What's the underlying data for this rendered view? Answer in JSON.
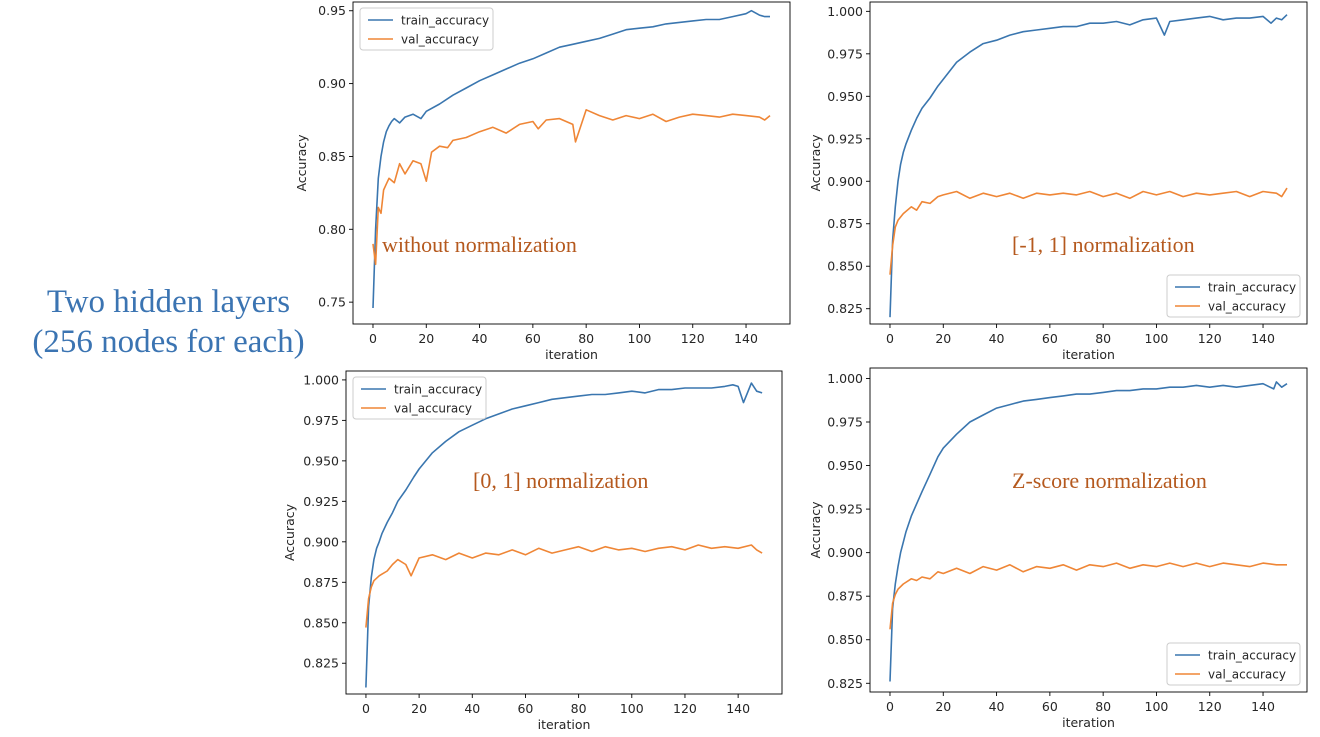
{
  "side_title": {
    "line1": "Two hidden layers",
    "line2": "(256 nodes for each)"
  },
  "colors": {
    "train": "#3a76af",
    "val": "#ef8636",
    "annotation": "#b5591e",
    "side_title": "#3b74b2"
  },
  "chart_data": [
    {
      "type": "line",
      "annotation": "without normalization",
      "xlabel": "iteration",
      "ylabel": "Accuracy",
      "xlim": [
        -7.5,
        156.5
      ],
      "ylim": [
        0.735,
        0.956
      ],
      "xticks": [
        0,
        20,
        40,
        60,
        80,
        100,
        120,
        140
      ],
      "yticks": [
        0.75,
        0.8,
        0.85,
        0.9,
        0.95
      ],
      "ytick_labels": [
        "0.75",
        "0.80",
        "0.85",
        "0.90",
        "0.95"
      ],
      "legend_position": "upper left",
      "legend_labels": [
        "train_accuracy",
        "val_accuracy"
      ],
      "series": [
        {
          "key": "train",
          "name": "train_accuracy",
          "x": [
            0,
            1,
            2,
            3,
            4,
            5,
            6,
            7,
            8,
            10,
            12,
            15,
            18,
            20,
            25,
            30,
            35,
            40,
            45,
            50,
            55,
            60,
            65,
            70,
            75,
            80,
            85,
            90,
            95,
            100,
            105,
            110,
            115,
            120,
            125,
            130,
            135,
            140,
            142,
            145,
            147,
            149
          ],
          "y": [
            0.746,
            0.8,
            0.835,
            0.85,
            0.86,
            0.867,
            0.871,
            0.874,
            0.876,
            0.873,
            0.877,
            0.879,
            0.876,
            0.881,
            0.886,
            0.892,
            0.897,
            0.902,
            0.906,
            0.91,
            0.914,
            0.917,
            0.921,
            0.925,
            0.927,
            0.929,
            0.931,
            0.934,
            0.937,
            0.938,
            0.939,
            0.941,
            0.942,
            0.943,
            0.944,
            0.944,
            0.946,
            0.948,
            0.95,
            0.947,
            0.946,
            0.946
          ]
        },
        {
          "key": "val",
          "name": "val_accuracy",
          "x": [
            0,
            1,
            2,
            3,
            4,
            5,
            6,
            8,
            10,
            12,
            15,
            18,
            20,
            22,
            25,
            28,
            30,
            35,
            40,
            45,
            50,
            55,
            60,
            62,
            65,
            70,
            75,
            76,
            80,
            85,
            90,
            95,
            100,
            105,
            110,
            115,
            120,
            125,
            130,
            135,
            140,
            145,
            147,
            149
          ],
          "y": [
            0.79,
            0.776,
            0.815,
            0.811,
            0.827,
            0.831,
            0.835,
            0.832,
            0.845,
            0.838,
            0.847,
            0.845,
            0.833,
            0.853,
            0.857,
            0.856,
            0.861,
            0.863,
            0.867,
            0.87,
            0.866,
            0.872,
            0.874,
            0.869,
            0.875,
            0.876,
            0.872,
            0.86,
            0.882,
            0.878,
            0.875,
            0.878,
            0.876,
            0.879,
            0.874,
            0.877,
            0.879,
            0.878,
            0.877,
            0.879,
            0.878,
            0.877,
            0.875,
            0.878
          ]
        }
      ]
    },
    {
      "type": "line",
      "annotation": "[-1, 1] normalization",
      "xlabel": "iteration",
      "ylabel": "Accuracy",
      "xlim": [
        -7.5,
        156.5
      ],
      "ylim": [
        0.816,
        1.0055
      ],
      "xticks": [
        0,
        20,
        40,
        60,
        80,
        100,
        120,
        140
      ],
      "yticks": [
        0.825,
        0.85,
        0.875,
        0.9,
        0.925,
        0.95,
        0.975,
        1.0
      ],
      "ytick_labels": [
        "0.825",
        "0.850",
        "0.875",
        "0.900",
        "0.925",
        "0.950",
        "0.975",
        "1.000"
      ],
      "legend_position": "lower right",
      "legend_labels": [
        "train_accuracy",
        "val_accuracy"
      ],
      "series": [
        {
          "key": "train",
          "name": "train_accuracy",
          "x": [
            0,
            1,
            2,
            3,
            4,
            5,
            6,
            8,
            10,
            12,
            15,
            18,
            20,
            25,
            30,
            35,
            40,
            45,
            50,
            55,
            60,
            65,
            70,
            75,
            80,
            85,
            90,
            95,
            100,
            103,
            105,
            110,
            115,
            120,
            125,
            130,
            135,
            140,
            143,
            145,
            147,
            149
          ],
          "y": [
            0.82,
            0.865,
            0.885,
            0.9,
            0.91,
            0.917,
            0.922,
            0.93,
            0.937,
            0.943,
            0.949,
            0.956,
            0.96,
            0.97,
            0.976,
            0.981,
            0.983,
            0.986,
            0.988,
            0.989,
            0.99,
            0.991,
            0.991,
            0.993,
            0.993,
            0.994,
            0.992,
            0.995,
            0.996,
            0.986,
            0.994,
            0.995,
            0.996,
            0.997,
            0.995,
            0.996,
            0.996,
            0.997,
            0.993,
            0.996,
            0.995,
            0.998
          ]
        },
        {
          "key": "val",
          "name": "val_accuracy",
          "x": [
            0,
            1,
            2,
            3,
            5,
            8,
            10,
            12,
            15,
            18,
            20,
            25,
            30,
            35,
            40,
            45,
            50,
            55,
            60,
            65,
            70,
            75,
            80,
            85,
            90,
            95,
            100,
            105,
            110,
            115,
            120,
            125,
            130,
            135,
            140,
            145,
            147,
            149
          ],
          "y": [
            0.845,
            0.862,
            0.873,
            0.877,
            0.881,
            0.885,
            0.883,
            0.888,
            0.887,
            0.891,
            0.892,
            0.894,
            0.89,
            0.893,
            0.891,
            0.893,
            0.89,
            0.893,
            0.892,
            0.893,
            0.892,
            0.894,
            0.891,
            0.893,
            0.89,
            0.894,
            0.892,
            0.894,
            0.891,
            0.893,
            0.892,
            0.893,
            0.894,
            0.891,
            0.894,
            0.893,
            0.891,
            0.896
          ]
        }
      ]
    },
    {
      "type": "line",
      "annotation": "[0, 1] normalization",
      "xlabel": "iteration",
      "ylabel": "Accuracy",
      "xlim": [
        -7.5,
        156.5
      ],
      "ylim": [
        0.806,
        1.0055
      ],
      "xticks": [
        0,
        20,
        40,
        60,
        80,
        100,
        120,
        140
      ],
      "yticks": [
        0.825,
        0.85,
        0.875,
        0.9,
        0.925,
        0.95,
        0.975,
        1.0
      ],
      "ytick_labels": [
        "0.825",
        "0.850",
        "0.875",
        "0.900",
        "0.925",
        "0.950",
        "0.975",
        "1.000"
      ],
      "legend_position": "upper left",
      "legend_labels": [
        "train_accuracy",
        "val_accuracy"
      ],
      "series": [
        {
          "key": "train",
          "name": "train_accuracy",
          "x": [
            0,
            1,
            2,
            3,
            4,
            5,
            6,
            8,
            10,
            12,
            15,
            18,
            20,
            25,
            30,
            35,
            40,
            45,
            50,
            55,
            60,
            65,
            70,
            75,
            80,
            85,
            90,
            95,
            100,
            105,
            110,
            115,
            120,
            125,
            130,
            135,
            138,
            140,
            142,
            145,
            147,
            149
          ],
          "y": [
            0.81,
            0.86,
            0.878,
            0.889,
            0.896,
            0.9,
            0.905,
            0.912,
            0.918,
            0.925,
            0.932,
            0.94,
            0.945,
            0.955,
            0.962,
            0.968,
            0.972,
            0.976,
            0.979,
            0.982,
            0.984,
            0.986,
            0.988,
            0.989,
            0.99,
            0.991,
            0.991,
            0.992,
            0.993,
            0.992,
            0.994,
            0.994,
            0.995,
            0.995,
            0.995,
            0.996,
            0.997,
            0.996,
            0.986,
            0.998,
            0.993,
            0.992
          ]
        },
        {
          "key": "val",
          "name": "val_accuracy",
          "x": [
            0,
            1,
            2,
            3,
            5,
            8,
            10,
            12,
            15,
            17,
            20,
            25,
            30,
            35,
            40,
            45,
            50,
            55,
            60,
            65,
            70,
            75,
            80,
            85,
            90,
            95,
            100,
            105,
            110,
            115,
            120,
            125,
            130,
            135,
            140,
            145,
            147,
            149
          ],
          "y": [
            0.847,
            0.865,
            0.872,
            0.876,
            0.879,
            0.882,
            0.886,
            0.889,
            0.886,
            0.879,
            0.89,
            0.892,
            0.889,
            0.893,
            0.89,
            0.893,
            0.892,
            0.895,
            0.892,
            0.896,
            0.893,
            0.895,
            0.897,
            0.894,
            0.897,
            0.895,
            0.896,
            0.894,
            0.896,
            0.897,
            0.895,
            0.898,
            0.896,
            0.897,
            0.896,
            0.898,
            0.895,
            0.893
          ]
        }
      ]
    },
    {
      "type": "line",
      "annotation": "Z-score normalization",
      "xlabel": "iteration",
      "ylabel": "Accuracy",
      "xlim": [
        -7.5,
        156.5
      ],
      "ylim": [
        0.82,
        1.006
      ],
      "xticks": [
        0,
        20,
        40,
        60,
        80,
        100,
        120,
        140
      ],
      "yticks": [
        0.825,
        0.85,
        0.875,
        0.9,
        0.925,
        0.95,
        0.975,
        1.0
      ],
      "ytick_labels": [
        "0.825",
        "0.850",
        "0.875",
        "0.900",
        "0.925",
        "0.950",
        "0.975",
        "1.000"
      ],
      "legend_position": "lower right",
      "legend_labels": [
        "train_accuracy",
        "val_accuracy"
      ],
      "series": [
        {
          "key": "train",
          "name": "train_accuracy",
          "x": [
            0,
            1,
            2,
            3,
            4,
            5,
            6,
            8,
            10,
            12,
            15,
            18,
            20,
            25,
            30,
            35,
            40,
            45,
            50,
            55,
            60,
            65,
            70,
            75,
            80,
            85,
            90,
            95,
            100,
            105,
            110,
            115,
            120,
            125,
            130,
            135,
            140,
            144,
            145,
            147,
            149
          ],
          "y": [
            0.826,
            0.868,
            0.882,
            0.892,
            0.9,
            0.906,
            0.912,
            0.921,
            0.928,
            0.935,
            0.945,
            0.955,
            0.96,
            0.968,
            0.975,
            0.979,
            0.983,
            0.985,
            0.987,
            0.988,
            0.989,
            0.99,
            0.991,
            0.991,
            0.992,
            0.993,
            0.993,
            0.994,
            0.994,
            0.995,
            0.995,
            0.996,
            0.995,
            0.996,
            0.995,
            0.996,
            0.997,
            0.994,
            0.998,
            0.995,
            0.997
          ]
        },
        {
          "key": "val",
          "name": "val_accuracy",
          "x": [
            0,
            1,
            2,
            3,
            5,
            8,
            10,
            12,
            15,
            18,
            20,
            25,
            30,
            35,
            40,
            45,
            50,
            55,
            60,
            65,
            70,
            75,
            80,
            85,
            90,
            95,
            100,
            105,
            110,
            115,
            120,
            125,
            130,
            135,
            140,
            145,
            147,
            149
          ],
          "y": [
            0.856,
            0.871,
            0.876,
            0.879,
            0.882,
            0.885,
            0.884,
            0.886,
            0.885,
            0.889,
            0.888,
            0.891,
            0.888,
            0.892,
            0.89,
            0.893,
            0.889,
            0.892,
            0.891,
            0.893,
            0.89,
            0.893,
            0.892,
            0.894,
            0.891,
            0.893,
            0.892,
            0.894,
            0.892,
            0.894,
            0.892,
            0.894,
            0.893,
            0.892,
            0.894,
            0.893,
            0.893,
            0.893
          ]
        }
      ]
    }
  ]
}
